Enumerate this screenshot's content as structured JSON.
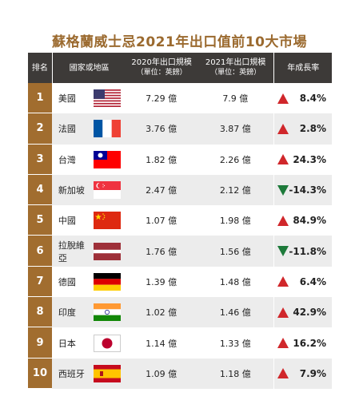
{
  "title": "蘇格蘭威士忌2021年出口值前10大市場",
  "header": {
    "rank": "排名",
    "country": "國家或地區",
    "y2020": "2020年出口規模",
    "y2020_unit": "（單位：英鎊）",
    "y2021": "2021年出口規模",
    "y2021_unit": "（單位：英鎊）",
    "growth": "年成長率"
  },
  "colors": {
    "header_bg": "#3d3a38",
    "rank_bg": "#a16d2f",
    "up": "#d0272b",
    "down": "#1d7a3a",
    "title": "#9b6a2f"
  },
  "rows": [
    {
      "rank": "1",
      "country": "美國",
      "flag": "us-flag-icon",
      "v2020": "7.29 億",
      "v2021": "7.9 億",
      "growth": "8.4%",
      "dir": "up"
    },
    {
      "rank": "2",
      "country": "法國",
      "flag": "france-flag-icon",
      "v2020": "3.76 億",
      "v2021": "3.87 億",
      "growth": "2.8%",
      "dir": "up"
    },
    {
      "rank": "3",
      "country": "台灣",
      "flag": "taiwan-flag-icon",
      "v2020": "1.82 億",
      "v2021": "2.26 億",
      "growth": "24.3%",
      "dir": "up"
    },
    {
      "rank": "4",
      "country": "新加坡",
      "flag": "singapore-flag-icon",
      "v2020": "2.47 億",
      "v2021": "2.12 億",
      "growth": "-14.3%",
      "dir": "down"
    },
    {
      "rank": "5",
      "country": "中國",
      "flag": "china-flag-icon",
      "v2020": "1.07 億",
      "v2021": "1.98 億",
      "growth": "84.9%",
      "dir": "up"
    },
    {
      "rank": "6",
      "country": "拉脫維亞",
      "flag": "latvia-flag-icon",
      "v2020": "1.76 億",
      "v2021": "1.56 億",
      "growth": "-11.8%",
      "dir": "down"
    },
    {
      "rank": "7",
      "country": "德國",
      "flag": "germany-flag-icon",
      "v2020": "1.39 億",
      "v2021": "1.48 億",
      "growth": "6.4%",
      "dir": "up"
    },
    {
      "rank": "8",
      "country": "印度",
      "flag": "india-flag-icon",
      "v2020": "1.02 億",
      "v2021": "1.46 億",
      "growth": "42.9%",
      "dir": "up"
    },
    {
      "rank": "9",
      "country": "日本",
      "flag": "japan-flag-icon",
      "v2020": "1.14 億",
      "v2021": "1.33 億",
      "growth": "16.2%",
      "dir": "up"
    },
    {
      "rank": "10",
      "country": "西班牙",
      "flag": "spain-flag-icon",
      "v2020": "1.09 億",
      "v2021": "1.18 億",
      "growth": "7.9%",
      "dir": "up"
    }
  ],
  "chart_data": {
    "type": "table",
    "title": "蘇格蘭威士忌2021年出口值前10大市場",
    "columns": [
      "排名",
      "國家或地區",
      "2020年出口規模（單位：英鎊）",
      "2021年出口規模（單位：英鎊）",
      "年成長率"
    ],
    "categories": [
      "美國",
      "法國",
      "台灣",
      "新加坡",
      "中國",
      "拉脫維亞",
      "德國",
      "印度",
      "日本",
      "西班牙"
    ],
    "series": [
      {
        "name": "2020年出口規模",
        "values": [
          7.29,
          3.76,
          1.82,
          2.47,
          1.07,
          1.76,
          1.39,
          1.02,
          1.14,
          1.09
        ]
      },
      {
        "name": "2021年出口規模",
        "values": [
          7.9,
          3.87,
          2.26,
          2.12,
          1.98,
          1.56,
          1.48,
          1.46,
          1.33,
          1.18
        ]
      },
      {
        "name": "年成長率",
        "values": [
          8.4,
          2.8,
          24.3,
          -14.3,
          84.9,
          -11.8,
          6.4,
          42.9,
          16.2,
          7.9
        ]
      }
    ]
  }
}
